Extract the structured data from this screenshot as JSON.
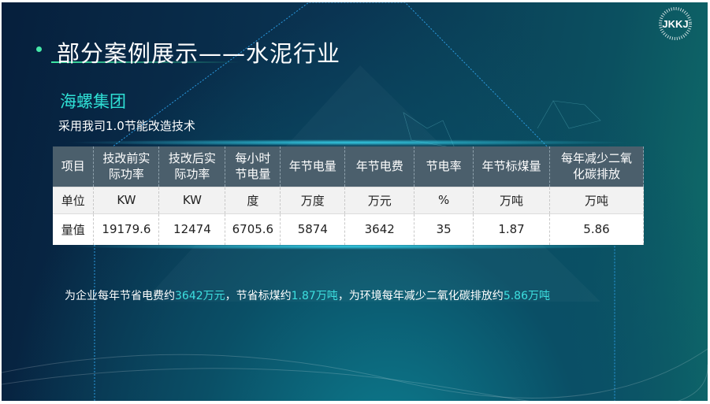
{
  "title": "部分案例展示——水泥行业",
  "company": "海螺集团",
  "subtitle": "采用我司1.0节能改造技术",
  "logo_text": "JKKJ",
  "table": {
    "headers": [
      "项目",
      "技改前实际功率",
      "技改后实际功率",
      "每小时节电量",
      "年节电量",
      "年节电费",
      "节电率",
      "年节标煤量",
      "每年减少二氧化碳排放"
    ],
    "units": [
      "单位",
      "KW",
      "KW",
      "度",
      "万度",
      "万元",
      "%",
      "万吨",
      "万吨"
    ],
    "values": [
      "量值",
      "19179.6",
      "12474",
      "6705.6",
      "5874",
      "3642",
      "35",
      "1.87",
      "5.86"
    ]
  },
  "summary": {
    "p1": "为企业每年节省电费约",
    "h1": "3642万元",
    "p2": "，节省标煤约",
    "h2": "1.87万吨",
    "p3": "，为环境每年减少二氧化碳排放约",
    "h3": "5.86万吨"
  },
  "colors": {
    "accent": "#2fe0d5",
    "header_bg": "#4b5f6c"
  }
}
